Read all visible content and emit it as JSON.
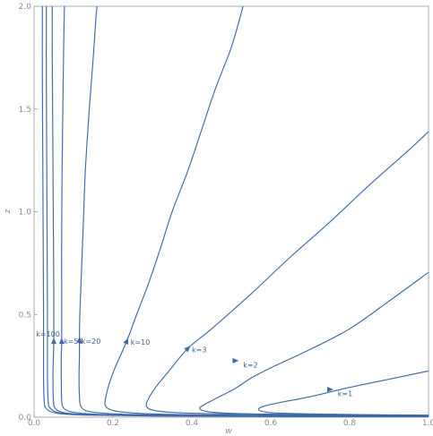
{
  "chart_data": {
    "type": "line",
    "title": "",
    "xlabel": "w",
    "ylabel": "z",
    "xlim": [
      0.0,
      1.0
    ],
    "ylim": [
      0.0,
      2.0
    ],
    "x_ticks": [
      {
        "value": 0.0,
        "label": "0.0"
      },
      {
        "value": 0.2,
        "label": "0.2"
      },
      {
        "value": 0.4,
        "label": "0.4"
      },
      {
        "value": 0.6,
        "label": "0.6"
      },
      {
        "value": 0.8,
        "label": "0.8"
      },
      {
        "value": 1.0,
        "label": "1.0"
      }
    ],
    "y_ticks": [
      {
        "value": 0.0,
        "label": "0.0"
      },
      {
        "value": 0.5,
        "label": "0.5"
      },
      {
        "value": 1.0,
        "label": "1.0"
      },
      {
        "value": 1.5,
        "label": "1.5"
      },
      {
        "value": 2.0,
        "label": "2.0"
      }
    ],
    "grid": false,
    "line_color": "#3d6aa8",
    "series": [
      {
        "name": "k=1",
        "label_at": [
          0.77,
          0.115
        ],
        "arrow_at": [
          0.75,
          0.135
        ],
        "lower": [
          [
            1.0,
            0.01
          ],
          [
            0.85,
            0.012
          ],
          [
            0.7,
            0.016
          ],
          [
            0.6,
            0.022
          ],
          [
            0.57,
            0.035
          ],
          [
            0.58,
            0.052
          ],
          [
            0.62,
            0.07
          ],
          [
            0.7,
            0.1
          ],
          [
            0.8,
            0.145
          ],
          [
            0.9,
            0.185
          ],
          [
            1.0,
            0.225
          ]
        ],
        "upper": []
      },
      {
        "name": "k=2",
        "label_at": [
          0.53,
          0.255
        ],
        "arrow_at": [
          0.51,
          0.275
        ],
        "lower": [
          [
            1.0,
            0.009
          ],
          [
            0.8,
            0.011
          ],
          [
            0.6,
            0.015
          ],
          [
            0.5,
            0.019
          ],
          [
            0.44,
            0.027
          ],
          [
            0.42,
            0.042
          ],
          [
            0.43,
            0.06
          ],
          [
            0.46,
            0.09
          ],
          [
            0.51,
            0.14
          ]
        ],
        "upper": [
          [
            0.51,
            0.14
          ],
          [
            0.55,
            0.19
          ],
          [
            0.6,
            0.24
          ],
          [
            0.7,
            0.33
          ],
          [
            0.8,
            0.43
          ],
          [
            0.9,
            0.565
          ],
          [
            1.0,
            0.705
          ]
        ]
      },
      {
        "name": "k=3",
        "label_at": [
          0.4,
          0.33
        ],
        "arrow_at": [
          0.39,
          0.335
        ],
        "lower": [
          [
            1.0,
            0.008
          ],
          [
            0.8,
            0.01
          ],
          [
            0.6,
            0.013
          ],
          [
            0.45,
            0.017
          ],
          [
            0.35,
            0.023
          ],
          [
            0.3,
            0.035
          ],
          [
            0.285,
            0.055
          ],
          [
            0.29,
            0.09
          ],
          [
            0.31,
            0.15
          ],
          [
            0.34,
            0.22
          ],
          [
            0.39,
            0.335
          ]
        ],
        "upper": [
          [
            0.39,
            0.335
          ],
          [
            0.45,
            0.43
          ],
          [
            0.55,
            0.6
          ],
          [
            0.65,
            0.78
          ],
          [
            0.75,
            0.95
          ],
          [
            0.85,
            1.13
          ],
          [
            0.95,
            1.3
          ],
          [
            1.0,
            1.39
          ]
        ]
      },
      {
        "name": "k=10",
        "label_at": [
          0.245,
          0.365
        ],
        "arrow_at": [
          0.235,
          0.37
        ],
        "lower": [
          [
            1.0,
            0.006
          ],
          [
            0.7,
            0.008
          ],
          [
            0.45,
            0.011
          ],
          [
            0.3,
            0.016
          ],
          [
            0.22,
            0.026
          ],
          [
            0.19,
            0.04
          ],
          [
            0.18,
            0.06
          ],
          [
            0.182,
            0.1
          ],
          [
            0.19,
            0.16
          ],
          [
            0.205,
            0.24
          ],
          [
            0.235,
            0.37
          ]
        ],
        "upper": [
          [
            0.235,
            0.37
          ],
          [
            0.26,
            0.5
          ],
          [
            0.29,
            0.65
          ],
          [
            0.32,
            0.82
          ],
          [
            0.35,
            1.0
          ],
          [
            0.39,
            1.2
          ],
          [
            0.425,
            1.4
          ],
          [
            0.46,
            1.6
          ],
          [
            0.5,
            1.8
          ],
          [
            0.53,
            2.0
          ]
        ]
      },
      {
        "name": "k=20",
        "label_at": [
          0.12,
          0.37
        ],
        "arrow_at": [
          0.115,
          0.375
        ],
        "lower": [
          [
            1.0,
            0.005
          ],
          [
            0.6,
            0.007
          ],
          [
            0.35,
            0.01
          ],
          [
            0.22,
            0.015
          ],
          [
            0.16,
            0.022
          ],
          [
            0.13,
            0.033
          ],
          [
            0.118,
            0.055
          ],
          [
            0.115,
            0.1
          ],
          [
            0.114,
            0.2
          ],
          [
            0.115,
            0.3
          ],
          [
            0.115,
            0.375
          ]
        ],
        "upper": [
          [
            0.115,
            0.375
          ],
          [
            0.116,
            0.5
          ],
          [
            0.12,
            0.7
          ],
          [
            0.125,
            0.95
          ],
          [
            0.13,
            1.2
          ],
          [
            0.14,
            1.5
          ],
          [
            0.15,
            1.75
          ],
          [
            0.157,
            1.95
          ],
          [
            0.16,
            2.0
          ]
        ]
      },
      {
        "name": "k=50",
        "label_at": [
          0.075,
          0.37
        ],
        "arrow_at": [
          0.07,
          0.37
        ],
        "lower": [
          [
            1.0,
            0.004
          ],
          [
            0.6,
            0.006
          ],
          [
            0.3,
            0.009
          ],
          [
            0.18,
            0.013
          ],
          [
            0.12,
            0.019
          ],
          [
            0.09,
            0.028
          ],
          [
            0.075,
            0.045
          ],
          [
            0.07,
            0.08
          ],
          [
            0.069,
            0.2
          ],
          [
            0.069,
            0.3
          ],
          [
            0.07,
            0.37
          ]
        ],
        "upper": [
          [
            0.07,
            0.37
          ],
          [
            0.07,
            0.6
          ],
          [
            0.07,
            0.9
          ],
          [
            0.071,
            1.2
          ],
          [
            0.073,
            1.5
          ],
          [
            0.075,
            1.8
          ],
          [
            0.077,
            2.0
          ]
        ]
      },
      {
        "name": "k=100",
        "label_at": [
          0.005,
          0.405
        ],
        "arrow_at": [
          0.05,
          0.37
        ],
        "lower": [
          [
            1.0,
            0.003
          ],
          [
            0.6,
            0.005
          ],
          [
            0.3,
            0.008
          ],
          [
            0.15,
            0.012
          ],
          [
            0.09,
            0.018
          ],
          [
            0.065,
            0.028
          ],
          [
            0.053,
            0.045
          ],
          [
            0.049,
            0.08
          ],
          [
            0.048,
            0.2
          ],
          [
            0.049,
            0.3
          ],
          [
            0.05,
            0.37
          ]
        ],
        "upper": [
          [
            0.05,
            0.37
          ],
          [
            0.05,
            0.6
          ],
          [
            0.049,
            0.9
          ],
          [
            0.048,
            1.2
          ],
          [
            0.047,
            1.5
          ],
          [
            0.046,
            1.8
          ],
          [
            0.046,
            2.0
          ]
        ]
      },
      {
        "name": "",
        "label_at": null,
        "arrow_at": null,
        "lower": [
          [
            1.0,
            0.002
          ],
          [
            0.6,
            0.004
          ],
          [
            0.3,
            0.007
          ],
          [
            0.14,
            0.011
          ],
          [
            0.08,
            0.017
          ],
          [
            0.055,
            0.026
          ],
          [
            0.042,
            0.042
          ],
          [
            0.036,
            0.07
          ],
          [
            0.034,
            0.2
          ],
          [
            0.034,
            0.5
          ]
        ],
        "upper": [
          [
            0.034,
            0.5
          ],
          [
            0.033,
            0.9
          ],
          [
            0.032,
            1.3
          ],
          [
            0.031,
            1.7
          ],
          [
            0.031,
            2.0
          ]
        ]
      },
      {
        "name": "",
        "label_at": null,
        "arrow_at": null,
        "lower": [
          [
            1.0,
            0.0015
          ],
          [
            0.6,
            0.003
          ],
          [
            0.3,
            0.006
          ],
          [
            0.13,
            0.01
          ],
          [
            0.07,
            0.016
          ],
          [
            0.045,
            0.025
          ],
          [
            0.032,
            0.04
          ],
          [
            0.026,
            0.07
          ],
          [
            0.024,
            0.2
          ],
          [
            0.024,
            0.5
          ]
        ],
        "upper": [
          [
            0.024,
            0.5
          ],
          [
            0.023,
            0.9
          ],
          [
            0.022,
            1.3
          ],
          [
            0.021,
            1.7
          ],
          [
            0.021,
            2.0
          ]
        ]
      }
    ]
  }
}
